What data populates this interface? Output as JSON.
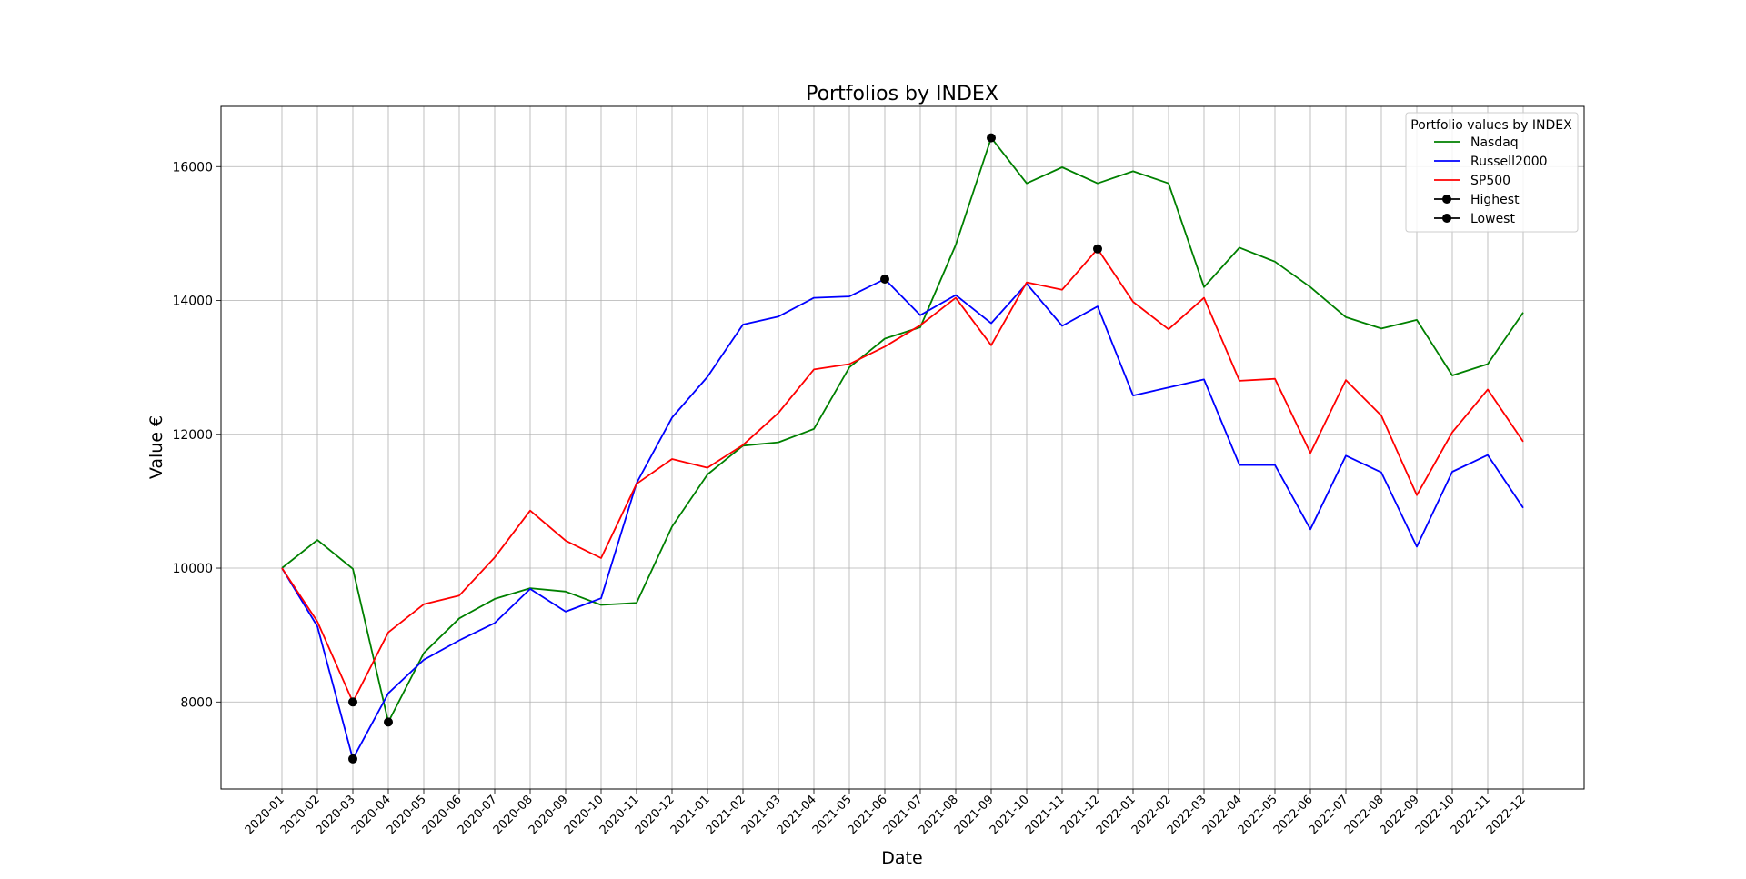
{
  "chart_data": {
    "type": "line",
    "title": "Portfolios by INDEX",
    "xlabel": "Date",
    "ylabel": "Value €",
    "x": [
      "2020-01",
      "2020-02",
      "2020-03",
      "2020-04",
      "2020-05",
      "2020-06",
      "2020-07",
      "2020-08",
      "2020-09",
      "2020-10",
      "2020-11",
      "2020-12",
      "2021-01",
      "2021-02",
      "2021-03",
      "2021-04",
      "2021-05",
      "2021-06",
      "2021-07",
      "2021-08",
      "2021-09",
      "2021-10",
      "2021-11",
      "2021-12",
      "2022-01",
      "2022-02",
      "2022-03",
      "2022-04",
      "2022-05",
      "2022-06",
      "2022-07",
      "2022-08",
      "2022-09",
      "2022-10",
      "2022-11",
      "2022-12"
    ],
    "ylim": [
      6700,
      16900
    ],
    "yticks": [
      8000,
      10000,
      12000,
      14000,
      16000
    ],
    "grid": true,
    "legend": {
      "title": "Portfolio values by INDEX",
      "placement": "top-right"
    },
    "series": [
      {
        "name": "Nasdaq",
        "color": "#008000",
        "values": [
          10000,
          10420,
          9990,
          7700,
          8730,
          9250,
          9540,
          9700,
          9650,
          9450,
          9480,
          10620,
          11400,
          11830,
          11880,
          12080,
          13000,
          13430,
          13600,
          14830,
          16430,
          15750,
          15990,
          15750,
          15930,
          15750,
          14200,
          14790,
          14580,
          14200,
          13750,
          13580,
          13710,
          12880,
          13050,
          13820
        ]
      },
      {
        "name": "Russell2000",
        "color": "#0000ff",
        "values": [
          10000,
          9130,
          7150,
          8130,
          8630,
          8920,
          9180,
          9690,
          9350,
          9550,
          11270,
          12250,
          12860,
          13640,
          13760,
          14040,
          14060,
          14320,
          13780,
          14080,
          13660,
          14250,
          13620,
          13910,
          12580,
          12700,
          12820,
          11540,
          11540,
          10580,
          11680,
          11430,
          10320,
          11440,
          11690,
          10900
        ]
      },
      {
        "name": "SP500",
        "color": "#ff0000",
        "values": [
          10000,
          9200,
          8000,
          9040,
          9460,
          9590,
          10160,
          10860,
          10410,
          10150,
          11260,
          11630,
          11500,
          11840,
          12320,
          12970,
          13050,
          13310,
          13630,
          14040,
          13330,
          14270,
          14160,
          14770,
          13980,
          13570,
          14040,
          12800,
          12830,
          11720,
          12810,
          12280,
          11090,
          12030,
          12670,
          11890
        ]
      }
    ],
    "markers": [
      {
        "name": "Highest",
        "color": "#000000",
        "points": [
          {
            "x": "2021-09",
            "y": 16430
          },
          {
            "x": "2021-06",
            "y": 14320
          },
          {
            "x": "2021-12",
            "y": 14770
          }
        ]
      },
      {
        "name": "Lowest",
        "color": "#000000",
        "points": [
          {
            "x": "2020-04",
            "y": 7700
          },
          {
            "x": "2020-03",
            "y": 7150
          },
          {
            "x": "2020-03",
            "y": 8000
          }
        ]
      }
    ]
  }
}
